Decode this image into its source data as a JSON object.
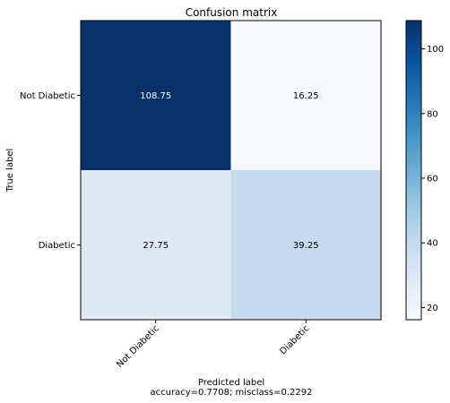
{
  "chart_data": {
    "type": "heatmap",
    "title": "Confusion matrix",
    "ylabel": "True label",
    "xlabel": "Predicted label",
    "footer": "accuracy=0.7708; misclass=0.2292",
    "row_labels": [
      "Not Diabetic",
      "Diabetic"
    ],
    "col_labels": [
      "Not Diabetic",
      "Diabetic"
    ],
    "values": [
      [
        108.75,
        16.25
      ],
      [
        27.75,
        39.25
      ]
    ],
    "value_labels": [
      [
        "108.75",
        "16.25"
      ],
      [
        "27.75",
        "39.25"
      ]
    ],
    "colormap": "Blues",
    "colorbar": {
      "range": [
        16.25,
        108.75
      ],
      "ticks": [
        20,
        40,
        60,
        80,
        100
      ],
      "tick_labels": [
        "20",
        "40",
        "60",
        "80",
        "100"
      ]
    },
    "x_tick_rotation_deg": 45
  }
}
